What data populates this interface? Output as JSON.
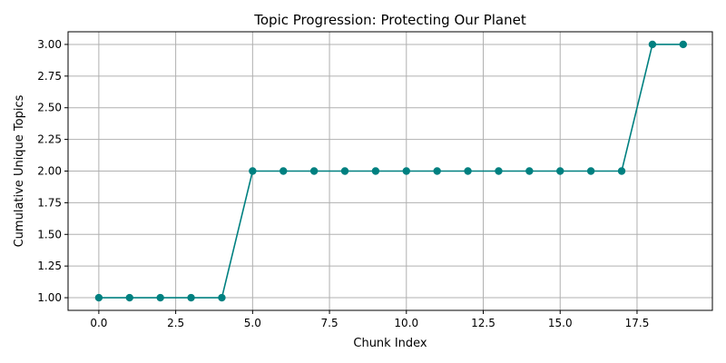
{
  "chart_data": {
    "type": "line",
    "title": "Topic Progression: Protecting Our Planet",
    "xlabel": "Chunk Index",
    "ylabel": "Cumulative Unique Topics",
    "xlim": [
      -1.0,
      19.95
    ],
    "ylim": [
      0.9,
      3.1
    ],
    "x_ticks": [
      0.0,
      2.5,
      5.0,
      7.5,
      10.0,
      12.5,
      15.0,
      17.5
    ],
    "x_tick_labels": [
      "0.0",
      "2.5",
      "5.0",
      "7.5",
      "10.0",
      "12.5",
      "15.0",
      "17.5"
    ],
    "y_ticks": [
      1.0,
      1.25,
      1.5,
      1.75,
      2.0,
      2.25,
      2.5,
      2.75,
      3.0
    ],
    "y_tick_labels": [
      "1.00",
      "1.25",
      "1.50",
      "1.75",
      "2.00",
      "2.25",
      "2.50",
      "2.75",
      "3.00"
    ],
    "grid": true,
    "color": "#008080",
    "series": [
      {
        "x": [
          0,
          1,
          2,
          3,
          4,
          5,
          6,
          7,
          8,
          9,
          10,
          11,
          12,
          13,
          14,
          15,
          16,
          17,
          18,
          19
        ],
        "y": [
          1,
          1,
          1,
          1,
          1,
          2,
          2,
          2,
          2,
          2,
          2,
          2,
          2,
          2,
          2,
          2,
          2,
          2,
          3,
          3
        ]
      }
    ]
  }
}
